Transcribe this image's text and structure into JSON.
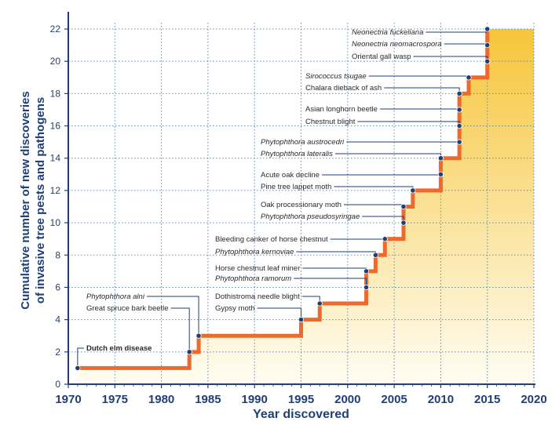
{
  "chart_data": {
    "type": "step-line",
    "xlabel": "Year discovered",
    "ylabel_lines": [
      "Cumulative number of new discoveries",
      "of invasive tree pests and pathogens"
    ],
    "xlim": [
      1970,
      2020
    ],
    "ylim": [
      0,
      22
    ],
    "x_ticks_major": [
      "1970",
      "1975",
      "1980",
      "1985",
      "1990",
      "1995",
      "2000",
      "2005",
      "2010",
      "2015",
      "2020"
    ],
    "x_ticks_minor": [
      "1971",
      "1972",
      "1973",
      "1974",
      "1976",
      "1977",
      "1978",
      "1979",
      "1981",
      "1982",
      "1983",
      "1984",
      "1986",
      "1987",
      "1988",
      "1989",
      "1991",
      "1992",
      "1993",
      "1994",
      "1996",
      "1997",
      "1998",
      "1999",
      "2001",
      "2002",
      "2003",
      "2004",
      "2006",
      "2007",
      "2008",
      "2009",
      "2011",
      "2012",
      "2013",
      "2014",
      "2016",
      "2017",
      "2018",
      "2019"
    ],
    "y_ticks": [
      "0",
      "2",
      "4",
      "6",
      "8",
      "10",
      "12",
      "14",
      "16",
      "18",
      "20",
      "22"
    ],
    "colors": {
      "line": "#ee6a2c",
      "axis": "#1f3f77",
      "grid": "#4c8fd6",
      "fill_top": "#f6c53a",
      "fill_bottom": "#fffdf2",
      "point": "#1f3f77"
    },
    "points": [
      {
        "x": 1971,
        "y": 1,
        "label": "Dutch elm disease",
        "style": "bold"
      },
      {
        "x": 1983,
        "y": 2,
        "label": "Great spruce bark beetle",
        "style": "normal"
      },
      {
        "x": 1984,
        "y": 3,
        "label": "Phytophthora alni",
        "style": "italic"
      },
      {
        "x": 1995,
        "y": 4,
        "label": "Gypsy moth",
        "style": "normal"
      },
      {
        "x": 1997,
        "y": 5,
        "label": "Dothistroma needle blight",
        "style": "normal"
      },
      {
        "x": 2002,
        "y": 6,
        "label": "Phytophthora ramorum",
        "style": "italic"
      },
      {
        "x": 2002,
        "y": 7,
        "label": "Horse chestnut leaf miner",
        "style": "normal"
      },
      {
        "x": 2003,
        "y": 8,
        "label": "Phytophthora kernoviae",
        "style": "italic"
      },
      {
        "x": 2004,
        "y": 9,
        "label": "Bleeding canker of horse chestnut",
        "style": "normal"
      },
      {
        "x": 2006,
        "y": 10,
        "label": "Phytophthora pseudosyringae",
        "style": "italic"
      },
      {
        "x": 2006,
        "y": 11,
        "label": "Oak processionary moth",
        "style": "normal"
      },
      {
        "x": 2007,
        "y": 12,
        "label": "Pine tree lappet moth",
        "style": "normal"
      },
      {
        "x": 2010,
        "y": 13,
        "label": "Acute oak decline",
        "style": "normal"
      },
      {
        "x": 2010,
        "y": 14,
        "label": "Phytophthora lateralis",
        "style": "italic"
      },
      {
        "x": 2012,
        "y": 15,
        "label": "Phytophthora austrocedri",
        "style": "italic"
      },
      {
        "x": 2012,
        "y": 16,
        "label": "Chestnut blight",
        "style": "normal"
      },
      {
        "x": 2012,
        "y": 17,
        "label": "Asian longhorn beetle",
        "style": "normal"
      },
      {
        "x": 2012,
        "y": 18,
        "label": "Chalara dieback of ash",
        "style": "normal"
      },
      {
        "x": 2013,
        "y": 19,
        "label": "Sirococcus tsugae",
        "style": "italic"
      },
      {
        "x": 2015,
        "y": 20,
        "label": "Oriental gall wasp",
        "style": "normal"
      },
      {
        "x": 2015,
        "y": 21,
        "label": "Neonectria neomacrospora",
        "style": "italic"
      },
      {
        "x": 2015,
        "y": 22,
        "label": "Neonectria fuckeliana",
        "style": "italic"
      }
    ]
  }
}
